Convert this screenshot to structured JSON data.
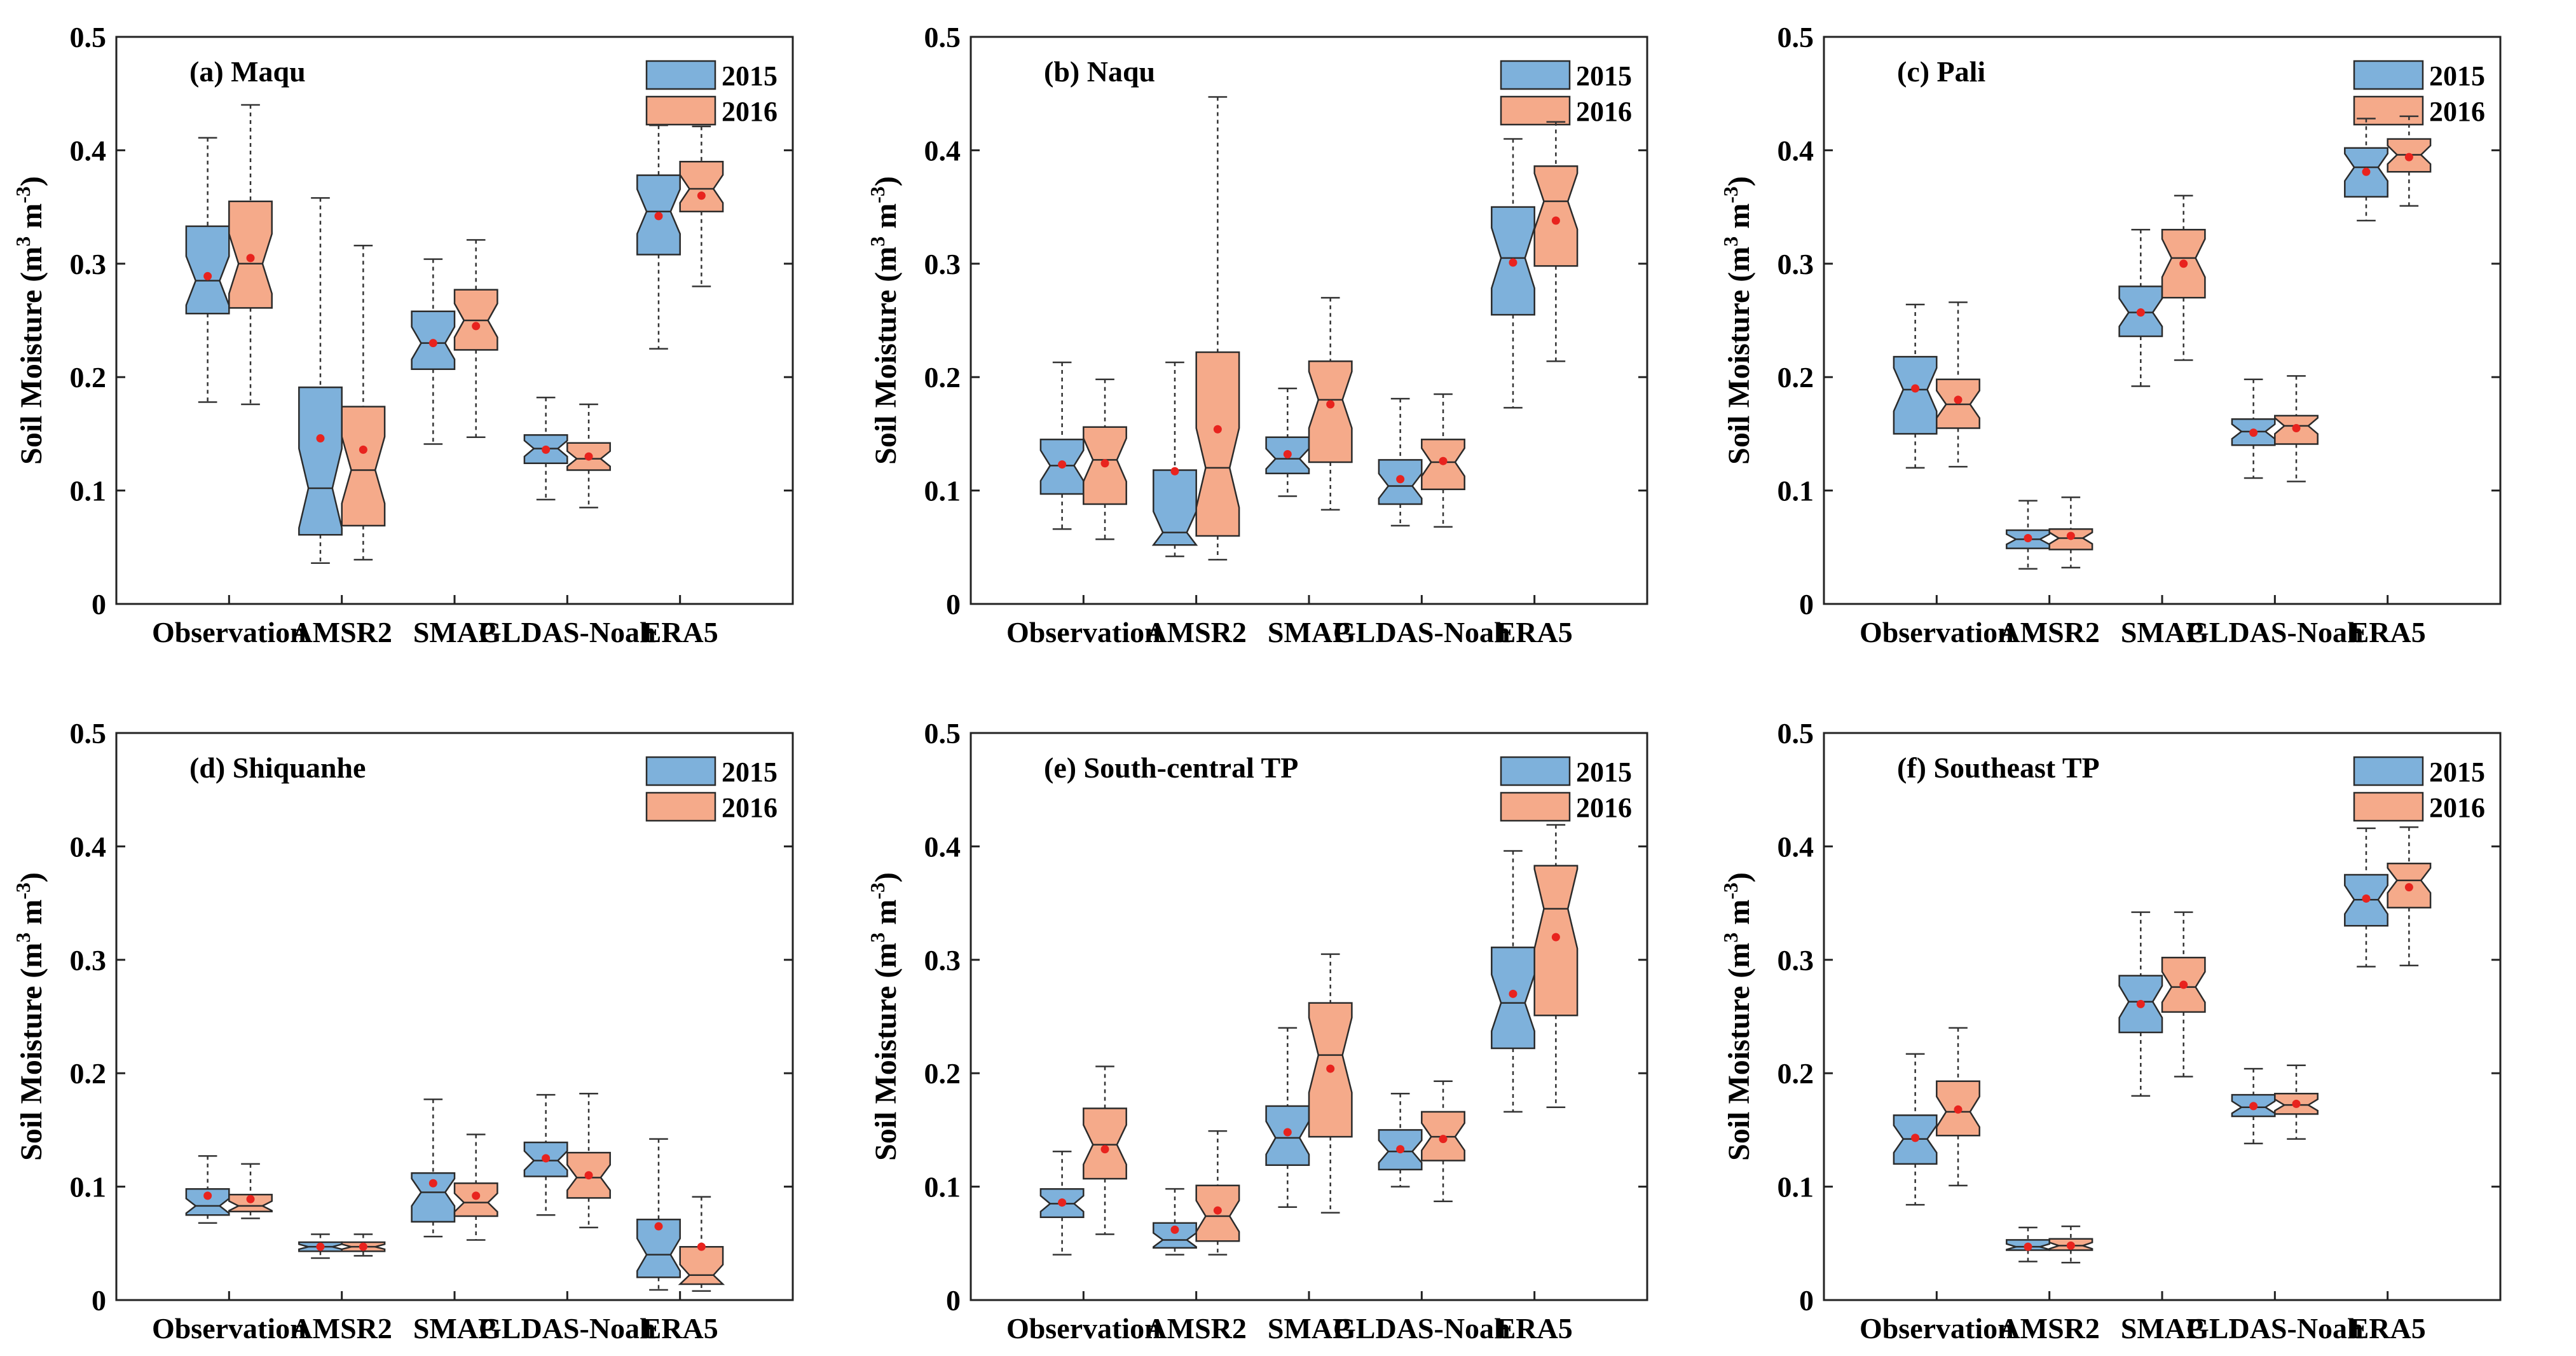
{
  "colors": {
    "c2015": "#7EB1DB",
    "c2016": "#F5AA8A",
    "edge": "#2b2b2b",
    "mean": "#E8231E"
  },
  "chart_data": [
    {
      "type": "box",
      "title": "(a) Maqu",
      "ylabel": "Soil Moisture (m3 m-3)",
      "ylim": [
        0,
        0.5
      ],
      "yticks": [
        0,
        0.1,
        0.2,
        0.3,
        0.4,
        0.5
      ],
      "ytick_labels": [
        "0",
        "0.1",
        "0.2",
        "0.3",
        "0.4",
        "0.5"
      ],
      "categories": [
        "Observation",
        "AMSR2",
        "SMAP",
        "GLDAS-Noah",
        "ERA5"
      ],
      "legend": [
        "2015",
        "2016"
      ],
      "series": [
        {
          "name": "2015",
          "boxes": [
            {
              "min": 0.178,
              "q1": 0.256,
              "median": 0.285,
              "q3": 0.333,
              "max": 0.411,
              "mean": 0.289
            },
            {
              "min": 0.036,
              "q1": 0.061,
              "median": 0.102,
              "q3": 0.191,
              "max": 0.358,
              "mean": 0.146
            },
            {
              "min": 0.141,
              "q1": 0.207,
              "median": 0.23,
              "q3": 0.258,
              "max": 0.304,
              "mean": 0.23
            },
            {
              "min": 0.092,
              "q1": 0.124,
              "median": 0.137,
              "q3": 0.149,
              "max": 0.182,
              "mean": 0.136
            },
            {
              "min": 0.225,
              "q1": 0.308,
              "median": 0.346,
              "q3": 0.378,
              "max": 0.422,
              "mean": 0.342
            }
          ]
        },
        {
          "name": "2016",
          "boxes": [
            {
              "min": 0.176,
              "q1": 0.261,
              "median": 0.3,
              "q3": 0.355,
              "max": 0.44,
              "mean": 0.305
            },
            {
              "min": 0.039,
              "q1": 0.069,
              "median": 0.118,
              "q3": 0.174,
              "max": 0.316,
              "mean": 0.136
            },
            {
              "min": 0.147,
              "q1": 0.224,
              "median": 0.25,
              "q3": 0.277,
              "max": 0.321,
              "mean": 0.245
            },
            {
              "min": 0.085,
              "q1": 0.118,
              "median": 0.128,
              "q3": 0.142,
              "max": 0.176,
              "mean": 0.13
            },
            {
              "min": 0.28,
              "q1": 0.346,
              "median": 0.366,
              "q3": 0.39,
              "max": 0.421,
              "mean": 0.36
            }
          ]
        }
      ]
    },
    {
      "type": "box",
      "title": "(b) Naqu",
      "ylabel": "Soil Moisture (m3 m-3)",
      "ylim": [
        0,
        0.5
      ],
      "yticks": [
        0,
        0.1,
        0.2,
        0.3,
        0.4,
        0.5
      ],
      "ytick_labels": [
        "0",
        "0.1",
        "0.2",
        "0.3",
        "0.4",
        "0.5"
      ],
      "categories": [
        "Observation",
        "AMSR2",
        "SMAP",
        "GLDAS-Noah",
        "ERA5"
      ],
      "legend": [
        "2015",
        "2016"
      ],
      "series": [
        {
          "name": "2015",
          "boxes": [
            {
              "min": 0.066,
              "q1": 0.097,
              "median": 0.122,
              "q3": 0.145,
              "max": 0.213,
              "mean": 0.123
            },
            {
              "min": 0.042,
              "q1": 0.052,
              "median": 0.063,
              "q3": 0.118,
              "max": 0.213,
              "mean": 0.117
            },
            {
              "min": 0.095,
              "q1": 0.115,
              "median": 0.128,
              "q3": 0.147,
              "max": 0.19,
              "mean": 0.132
            },
            {
              "min": 0.069,
              "q1": 0.088,
              "median": 0.104,
              "q3": 0.127,
              "max": 0.181,
              "mean": 0.11
            },
            {
              "min": 0.173,
              "q1": 0.255,
              "median": 0.305,
              "q3": 0.35,
              "max": 0.41,
              "mean": 0.301
            }
          ]
        },
        {
          "name": "2016",
          "boxes": [
            {
              "min": 0.057,
              "q1": 0.088,
              "median": 0.127,
              "q3": 0.156,
              "max": 0.198,
              "mean": 0.124
            },
            {
              "min": 0.039,
              "q1": 0.06,
              "median": 0.12,
              "q3": 0.222,
              "max": 0.447,
              "mean": 0.154
            },
            {
              "min": 0.083,
              "q1": 0.125,
              "median": 0.18,
              "q3": 0.214,
              "max": 0.27,
              "mean": 0.176
            },
            {
              "min": 0.068,
              "q1": 0.101,
              "median": 0.125,
              "q3": 0.145,
              "max": 0.185,
              "mean": 0.126
            },
            {
              "min": 0.214,
              "q1": 0.298,
              "median": 0.355,
              "q3": 0.386,
              "max": 0.425,
              "mean": 0.338
            }
          ]
        }
      ]
    },
    {
      "type": "box",
      "title": "(c) Pali",
      "ylabel": "Soil Moisture (m3 m-3)",
      "ylim": [
        0,
        0.5
      ],
      "yticks": [
        0,
        0.1,
        0.2,
        0.3,
        0.4,
        0.5
      ],
      "ytick_labels": [
        "0",
        "0.1",
        "0.2",
        "0.3",
        "0.4",
        "0.5"
      ],
      "categories": [
        "Observation",
        "AMSR2",
        "SMAP",
        "GLDAS-Noah",
        "ERA5"
      ],
      "legend": [
        "2015",
        "2016"
      ],
      "series": [
        {
          "name": "2015",
          "boxes": [
            {
              "min": 0.12,
              "q1": 0.15,
              "median": 0.189,
              "q3": 0.218,
              "max": 0.264,
              "mean": 0.19
            },
            {
              "min": 0.031,
              "q1": 0.049,
              "median": 0.057,
              "q3": 0.065,
              "max": 0.091,
              "mean": 0.058
            },
            {
              "min": 0.192,
              "q1": 0.236,
              "median": 0.257,
              "q3": 0.28,
              "max": 0.33,
              "mean": 0.257
            },
            {
              "min": 0.111,
              "q1": 0.14,
              "median": 0.152,
              "q3": 0.163,
              "max": 0.198,
              "mean": 0.151
            },
            {
              "min": 0.338,
              "q1": 0.359,
              "median": 0.385,
              "q3": 0.402,
              "max": 0.428,
              "mean": 0.381
            }
          ]
        },
        {
          "name": "2016",
          "boxes": [
            {
              "min": 0.121,
              "q1": 0.155,
              "median": 0.176,
              "q3": 0.198,
              "max": 0.266,
              "mean": 0.18
            },
            {
              "min": 0.032,
              "q1": 0.048,
              "median": 0.058,
              "q3": 0.066,
              "max": 0.094,
              "mean": 0.06
            },
            {
              "min": 0.215,
              "q1": 0.27,
              "median": 0.305,
              "q3": 0.33,
              "max": 0.36,
              "mean": 0.3
            },
            {
              "min": 0.108,
              "q1": 0.141,
              "median": 0.157,
              "q3": 0.166,
              "max": 0.201,
              "mean": 0.155
            },
            {
              "min": 0.351,
              "q1": 0.381,
              "median": 0.396,
              "q3": 0.41,
              "max": 0.43,
              "mean": 0.394
            }
          ]
        }
      ]
    },
    {
      "type": "box",
      "title": "(d) Shiquanhe",
      "ylabel": "Soil Moisture (m3 m-3)",
      "ylim": [
        0,
        0.5
      ],
      "yticks": [
        0,
        0.1,
        0.2,
        0.3,
        0.4,
        0.5
      ],
      "ytick_labels": [
        "0",
        "0.1",
        "0.2",
        "0.3",
        "0.4",
        "0.5"
      ],
      "categories": [
        "Observation",
        "AMSR2",
        "SMAP",
        "GLDAS-Noah",
        "ERA5"
      ],
      "legend": [
        "2015",
        "2016"
      ],
      "series": [
        {
          "name": "2015",
          "boxes": [
            {
              "min": 0.068,
              "q1": 0.075,
              "median": 0.083,
              "q3": 0.098,
              "max": 0.127,
              "mean": 0.092
            },
            {
              "min": 0.037,
              "q1": 0.043,
              "median": 0.047,
              "q3": 0.051,
              "max": 0.058,
              "mean": 0.047
            },
            {
              "min": 0.056,
              "q1": 0.069,
              "median": 0.095,
              "q3": 0.112,
              "max": 0.177,
              "mean": 0.103
            },
            {
              "min": 0.075,
              "q1": 0.109,
              "median": 0.123,
              "q3": 0.139,
              "max": 0.181,
              "mean": 0.125
            },
            {
              "min": 0.009,
              "q1": 0.02,
              "median": 0.04,
              "q3": 0.071,
              "max": 0.142,
              "mean": 0.065
            }
          ]
        },
        {
          "name": "2016",
          "boxes": [
            {
              "min": 0.072,
              "q1": 0.078,
              "median": 0.083,
              "q3": 0.093,
              "max": 0.12,
              "mean": 0.089
            },
            {
              "min": 0.039,
              "q1": 0.043,
              "median": 0.047,
              "q3": 0.051,
              "max": 0.058,
              "mean": 0.047
            },
            {
              "min": 0.053,
              "q1": 0.074,
              "median": 0.086,
              "q3": 0.103,
              "max": 0.146,
              "mean": 0.092
            },
            {
              "min": 0.064,
              "q1": 0.09,
              "median": 0.108,
              "q3": 0.13,
              "max": 0.182,
              "mean": 0.11
            },
            {
              "min": 0.008,
              "q1": 0.014,
              "median": 0.022,
              "q3": 0.047,
              "max": 0.091,
              "mean": 0.047
            }
          ]
        }
      ]
    },
    {
      "type": "box",
      "title": "(e) South-central TP",
      "ylabel": "Soil Moisture (m3 m-3)",
      "ylim": [
        0,
        0.5
      ],
      "yticks": [
        0,
        0.1,
        0.2,
        0.3,
        0.4,
        0.5
      ],
      "ytick_labels": [
        "0",
        "0.1",
        "0.2",
        "0.3",
        "0.4",
        "0.5"
      ],
      "categories": [
        "Observation",
        "AMSR2",
        "SMAP",
        "GLDAS-Noah",
        "ERA5"
      ],
      "legend": [
        "2015",
        "2016"
      ],
      "series": [
        {
          "name": "2015",
          "boxes": [
            {
              "min": 0.04,
              "q1": 0.073,
              "median": 0.085,
              "q3": 0.098,
              "max": 0.131,
              "mean": 0.086
            },
            {
              "min": 0.04,
              "q1": 0.046,
              "median": 0.053,
              "q3": 0.068,
              "max": 0.098,
              "mean": 0.062
            },
            {
              "min": 0.082,
              "q1": 0.119,
              "median": 0.143,
              "q3": 0.171,
              "max": 0.24,
              "mean": 0.148
            },
            {
              "min": 0.1,
              "q1": 0.115,
              "median": 0.131,
              "q3": 0.15,
              "max": 0.182,
              "mean": 0.133
            },
            {
              "min": 0.166,
              "q1": 0.222,
              "median": 0.262,
              "q3": 0.311,
              "max": 0.396,
              "mean": 0.27
            }
          ]
        },
        {
          "name": "2016",
          "boxes": [
            {
              "min": 0.058,
              "q1": 0.107,
              "median": 0.137,
              "q3": 0.169,
              "max": 0.206,
              "mean": 0.133
            },
            {
              "min": 0.04,
              "q1": 0.052,
              "median": 0.074,
              "q3": 0.101,
              "max": 0.149,
              "mean": 0.079
            },
            {
              "min": 0.077,
              "q1": 0.144,
              "median": 0.216,
              "q3": 0.262,
              "max": 0.305,
              "mean": 0.204
            },
            {
              "min": 0.087,
              "q1": 0.123,
              "median": 0.144,
              "q3": 0.166,
              "max": 0.193,
              "mean": 0.142
            },
            {
              "min": 0.17,
              "q1": 0.251,
              "median": 0.345,
              "q3": 0.383,
              "max": 0.419,
              "mean": 0.32
            }
          ]
        }
      ]
    },
    {
      "type": "box",
      "title": "(f) Southeast TP",
      "ylabel": "Soil Moisture (m3 m-3)",
      "ylim": [
        0,
        0.5
      ],
      "yticks": [
        0,
        0.1,
        0.2,
        0.3,
        0.4,
        0.5
      ],
      "ytick_labels": [
        "0",
        "0.1",
        "0.2",
        "0.3",
        "0.4",
        "0.5"
      ],
      "categories": [
        "Observation",
        "AMSR2",
        "SMAP",
        "GLDAS-Noah",
        "ERA5"
      ],
      "legend": [
        "2015",
        "2016"
      ],
      "series": [
        {
          "name": "2015",
          "boxes": [
            {
              "min": 0.084,
              "q1": 0.12,
              "median": 0.142,
              "q3": 0.163,
              "max": 0.217,
              "mean": 0.143
            },
            {
              "min": 0.034,
              "q1": 0.044,
              "median": 0.047,
              "q3": 0.053,
              "max": 0.064,
              "mean": 0.047
            },
            {
              "min": 0.18,
              "q1": 0.236,
              "median": 0.263,
              "q3": 0.286,
              "max": 0.342,
              "mean": 0.261
            },
            {
              "min": 0.138,
              "q1": 0.162,
              "median": 0.17,
              "q3": 0.181,
              "max": 0.204,
              "mean": 0.171
            },
            {
              "min": 0.294,
              "q1": 0.33,
              "median": 0.353,
              "q3": 0.375,
              "max": 0.416,
              "mean": 0.354
            }
          ]
        },
        {
          "name": "2016",
          "boxes": [
            {
              "min": 0.101,
              "q1": 0.145,
              "median": 0.166,
              "q3": 0.193,
              "max": 0.24,
              "mean": 0.168
            },
            {
              "min": 0.033,
              "q1": 0.044,
              "median": 0.048,
              "q3": 0.054,
              "max": 0.065,
              "mean": 0.048
            },
            {
              "min": 0.197,
              "q1": 0.254,
              "median": 0.276,
              "q3": 0.302,
              "max": 0.342,
              "mean": 0.278
            },
            {
              "min": 0.142,
              "q1": 0.164,
              "median": 0.172,
              "q3": 0.182,
              "max": 0.207,
              "mean": 0.173
            },
            {
              "min": 0.295,
              "q1": 0.346,
              "median": 0.37,
              "q3": 0.385,
              "max": 0.417,
              "mean": 0.364
            }
          ]
        }
      ]
    }
  ]
}
